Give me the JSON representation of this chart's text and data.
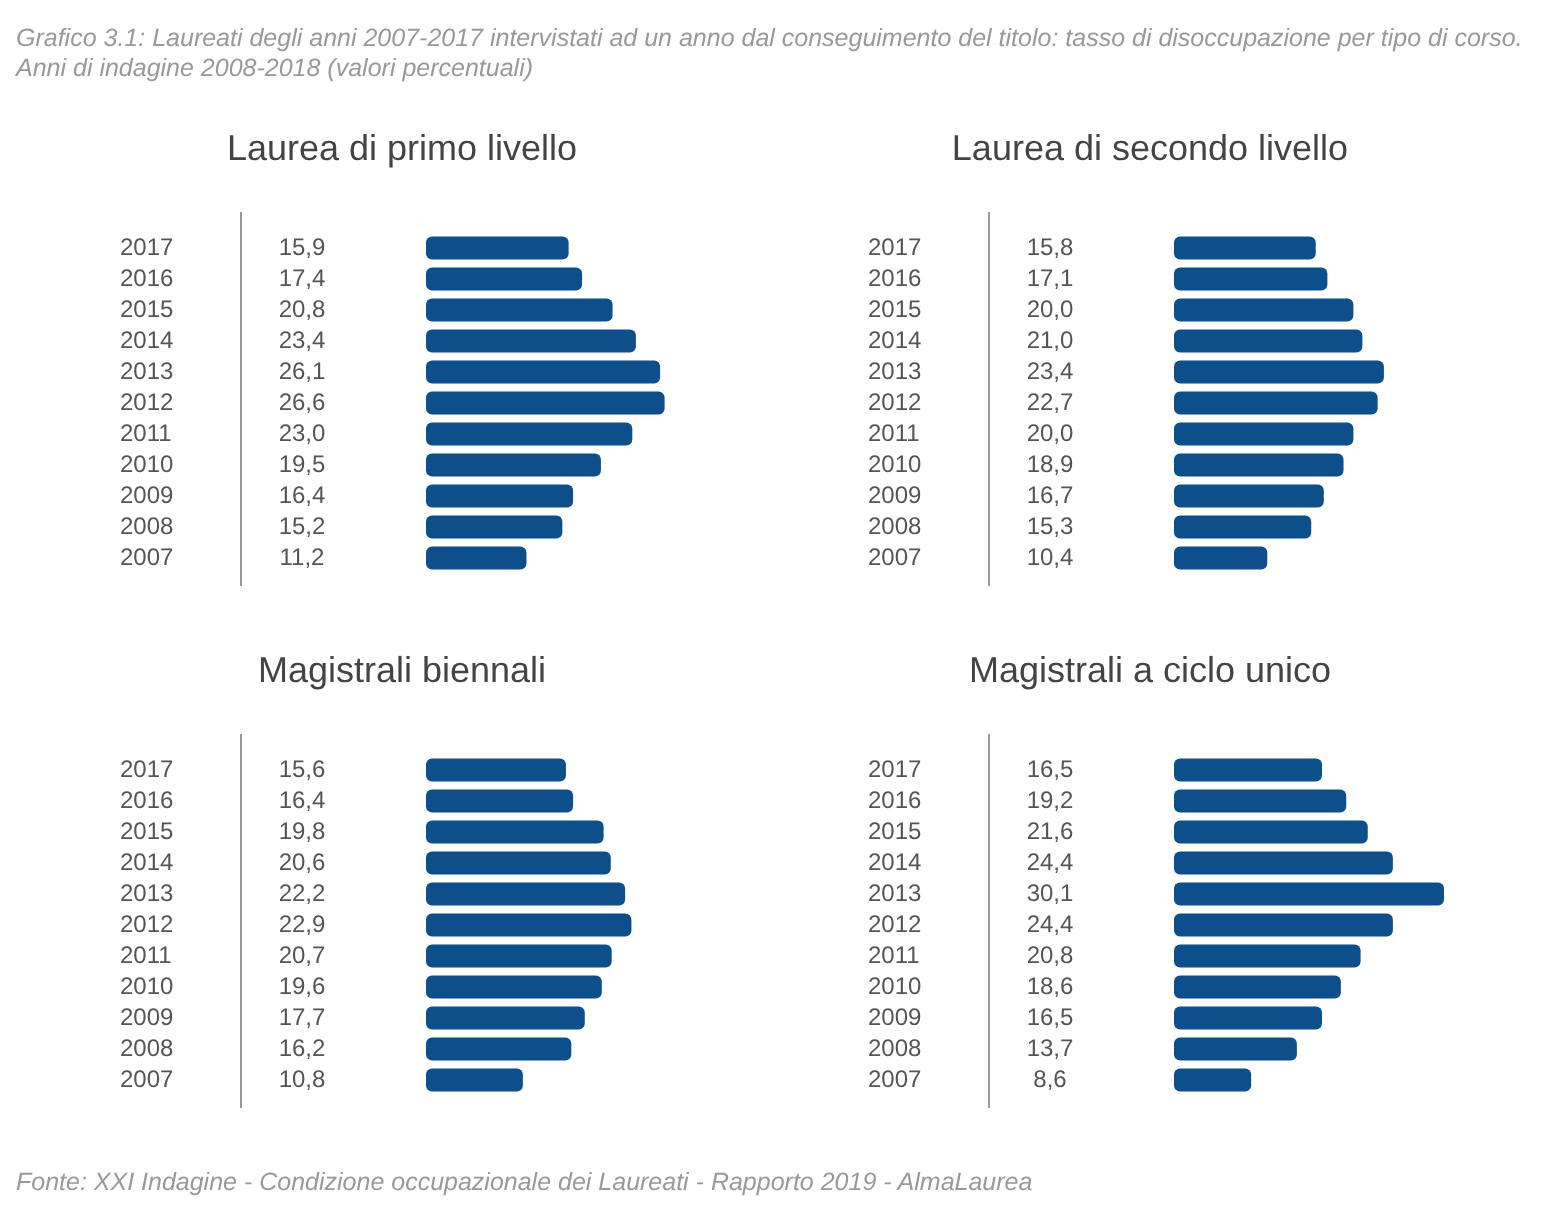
{
  "chart_data": [
    {
      "type": "bar",
      "orientation": "horizontal",
      "title": "Laurea di primo livello",
      "annotations": [
        "Grafico 3.1: Laureati degli anni 2007-2017 intervistati ad un anno dal conseguimento del titolo: tasso di disoccupazione per tipo di corso. Anni di indagine 2008-2018 (valori percentuali)"
      ],
      "categories": [
        "2017",
        "2016",
        "2015",
        "2014",
        "2013",
        "2012",
        "2011",
        "2010",
        "2009",
        "2008",
        "2007"
      ],
      "color": "#0d4f8b",
      "values": [
        15.9,
        17.4,
        20.8,
        23.4,
        26.1,
        26.6,
        23.0,
        19.5,
        16.4,
        15.2,
        11.2
      ],
      "value_labels": [
        "15,9",
        "17,4",
        "20,8",
        "23,4",
        "26,1",
        "26,6",
        "23,0",
        "19,5",
        "16,4",
        "15,2",
        "11,2"
      ]
    },
    {
      "type": "bar",
      "orientation": "horizontal",
      "title": "Laurea di secondo livello",
      "categories": [
        "2017",
        "2016",
        "2015",
        "2014",
        "2013",
        "2012",
        "2011",
        "2010",
        "2009",
        "2008",
        "2007"
      ],
      "color": "#0d4f8b",
      "values": [
        15.8,
        17.1,
        20.0,
        21.0,
        23.4,
        22.7,
        20.0,
        18.9,
        16.7,
        15.3,
        10.4
      ],
      "value_labels": [
        "15,8",
        "17,1",
        "20,0",
        "21,0",
        "23,4",
        "22,7",
        "20,0",
        "18,9",
        "16,7",
        "15,3",
        "10,4"
      ]
    },
    {
      "type": "bar",
      "orientation": "horizontal",
      "title": "Magistrali biennali",
      "categories": [
        "2017",
        "2016",
        "2015",
        "2014",
        "2013",
        "2012",
        "2011",
        "2010",
        "2009",
        "2008",
        "2007"
      ],
      "color": "#0d4f8b",
      "values": [
        15.6,
        16.4,
        19.8,
        20.6,
        22.2,
        22.9,
        20.7,
        19.6,
        17.7,
        16.2,
        10.8
      ],
      "value_labels": [
        "15,6",
        "16,4",
        "19,8",
        "20,6",
        "22,2",
        "22,9",
        "20,7",
        "19,6",
        "17,7",
        "16,2",
        "10,8"
      ]
    },
    {
      "type": "bar",
      "orientation": "horizontal",
      "title": "Magistrali a ciclo unico",
      "annotations": [
        "Fonte: XXI Indagine - Condizione occupazionale dei Laureati - Rapporto 2019 - AlmaLaurea"
      ],
      "categories": [
        "2017",
        "2016",
        "2015",
        "2014",
        "2013",
        "2012",
        "2011",
        "2010",
        "2009",
        "2008",
        "2007"
      ],
      "color": "#0d4f8b",
      "values": [
        16.5,
        19.2,
        21.6,
        24.4,
        30.1,
        24.4,
        20.8,
        18.6,
        16.5,
        13.7,
        8.6
      ],
      "value_labels": [
        "16,5",
        "19,2",
        "21,6",
        "24,4",
        "30,1",
        "24,4",
        "20,8",
        "18,6",
        "16,5",
        "13,7",
        "8,6"
      ]
    }
  ]
}
